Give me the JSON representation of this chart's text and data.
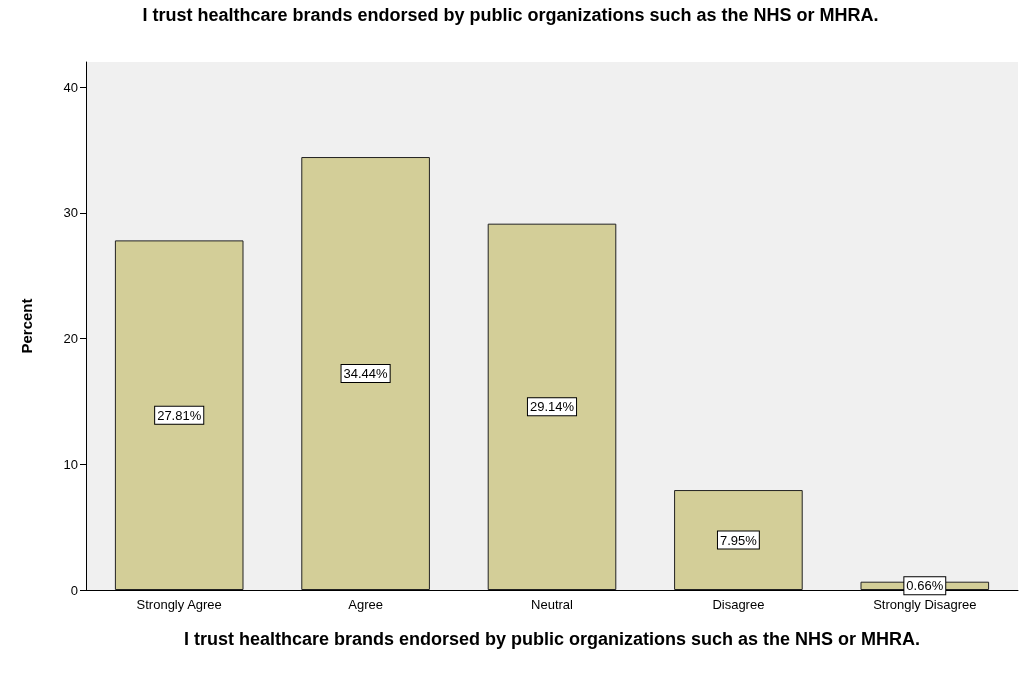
{
  "chart_data": {
    "type": "bar",
    "title": "I trust healthcare brands endorsed by public organizations such as the NHS or MHRA.",
    "xlabel": "I trust healthcare brands endorsed by public organizations such as the NHS or MHRA.",
    "ylabel": "Percent",
    "categories": [
      "Strongly Agree",
      "Agree",
      "Neutral",
      "Disagree",
      "Strongly Disagree"
    ],
    "values": [
      27.81,
      34.44,
      29.14,
      7.95,
      0.66
    ],
    "value_labels": [
      "27.81%",
      "34.44%",
      "29.14%",
      "7.95%",
      "0.66%"
    ],
    "color": "#d3ce98",
    "ylim": [
      0,
      42
    ],
    "yticks": [
      0,
      10,
      20,
      30,
      40
    ],
    "grid": false
  }
}
